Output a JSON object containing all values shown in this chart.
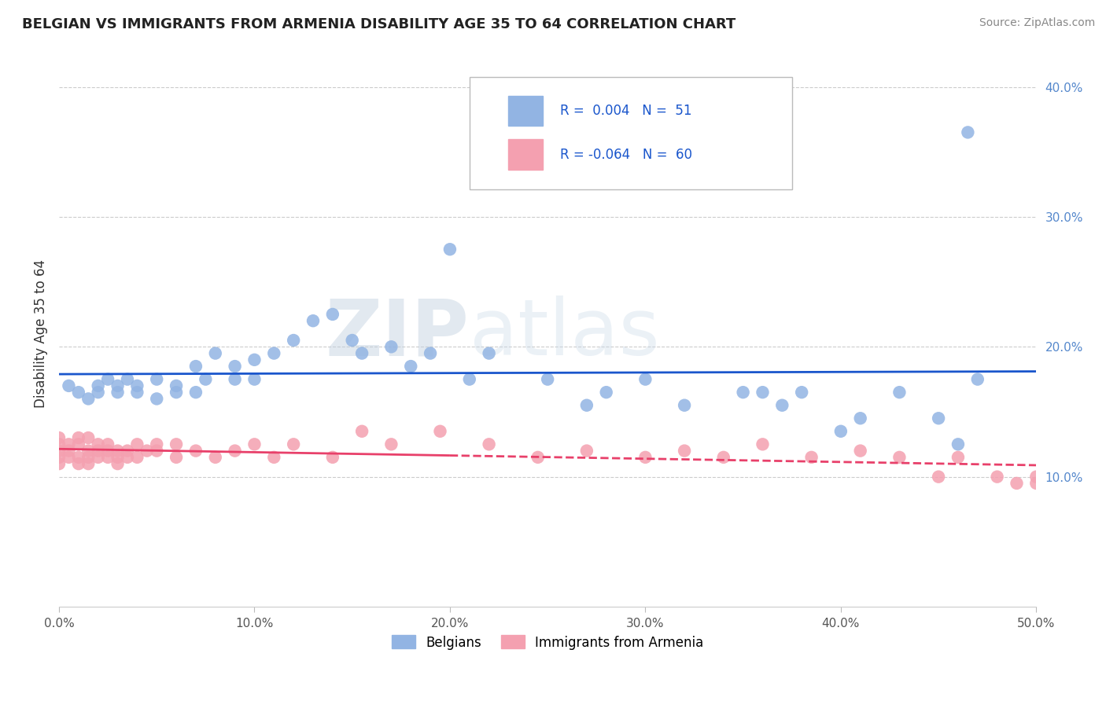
{
  "title": "BELGIAN VS IMMIGRANTS FROM ARMENIA DISABILITY AGE 35 TO 64 CORRELATION CHART",
  "source": "Source: ZipAtlas.com",
  "ylabel": "Disability Age 35 to 64",
  "xlim": [
    0.0,
    0.5
  ],
  "ylim": [
    0.0,
    0.42
  ],
  "xtick_vals": [
    0.0,
    0.1,
    0.2,
    0.3,
    0.4,
    0.5
  ],
  "xtick_labels": [
    "0.0%",
    "10.0%",
    "20.0%",
    "30.0%",
    "40.0%",
    "50.0%"
  ],
  "ytick_vals": [
    0.1,
    0.2,
    0.3,
    0.4
  ],
  "ytick_labels": [
    "10.0%",
    "20.0%",
    "30.0%",
    "40.0%"
  ],
  "legend_r_belgian": "0.004",
  "legend_n_belgian": "51",
  "legend_r_armenia": "-0.064",
  "legend_n_armenia": "60",
  "belgian_color": "#92b4e3",
  "armenia_color": "#f4a0b0",
  "trend_belgian_color": "#1a56cc",
  "trend_armenia_color": "#e8406a",
  "belgians_x": [
    0.005,
    0.01,
    0.015,
    0.02,
    0.02,
    0.025,
    0.03,
    0.03,
    0.035,
    0.04,
    0.04,
    0.05,
    0.05,
    0.06,
    0.06,
    0.07,
    0.07,
    0.075,
    0.08,
    0.09,
    0.09,
    0.1,
    0.1,
    0.11,
    0.12,
    0.13,
    0.14,
    0.15,
    0.155,
    0.17,
    0.18,
    0.19,
    0.2,
    0.21,
    0.22,
    0.25,
    0.27,
    0.28,
    0.3,
    0.32,
    0.35,
    0.36,
    0.37,
    0.38,
    0.4,
    0.41,
    0.43,
    0.45,
    0.46,
    0.465,
    0.47
  ],
  "belgians_y": [
    0.17,
    0.165,
    0.16,
    0.165,
    0.17,
    0.175,
    0.165,
    0.17,
    0.175,
    0.165,
    0.17,
    0.16,
    0.175,
    0.165,
    0.17,
    0.165,
    0.185,
    0.175,
    0.195,
    0.185,
    0.175,
    0.19,
    0.175,
    0.195,
    0.205,
    0.22,
    0.225,
    0.205,
    0.195,
    0.2,
    0.185,
    0.195,
    0.275,
    0.175,
    0.195,
    0.175,
    0.155,
    0.165,
    0.175,
    0.155,
    0.165,
    0.165,
    0.155,
    0.165,
    0.135,
    0.145,
    0.165,
    0.145,
    0.125,
    0.365,
    0.175
  ],
  "armenia_x": [
    0.0,
    0.0,
    0.0,
    0.0,
    0.0,
    0.005,
    0.005,
    0.005,
    0.01,
    0.01,
    0.01,
    0.01,
    0.015,
    0.015,
    0.015,
    0.015,
    0.02,
    0.02,
    0.02,
    0.025,
    0.025,
    0.025,
    0.03,
    0.03,
    0.03,
    0.035,
    0.035,
    0.04,
    0.04,
    0.045,
    0.05,
    0.05,
    0.06,
    0.06,
    0.07,
    0.08,
    0.09,
    0.1,
    0.11,
    0.12,
    0.14,
    0.155,
    0.17,
    0.195,
    0.22,
    0.245,
    0.27,
    0.3,
    0.32,
    0.34,
    0.36,
    0.385,
    0.41,
    0.43,
    0.45,
    0.46,
    0.48,
    0.49,
    0.5,
    0.5
  ],
  "armenia_y": [
    0.13,
    0.125,
    0.12,
    0.115,
    0.11,
    0.125,
    0.12,
    0.115,
    0.13,
    0.125,
    0.115,
    0.11,
    0.13,
    0.12,
    0.115,
    0.11,
    0.125,
    0.12,
    0.115,
    0.125,
    0.12,
    0.115,
    0.12,
    0.115,
    0.11,
    0.12,
    0.115,
    0.125,
    0.115,
    0.12,
    0.125,
    0.12,
    0.125,
    0.115,
    0.12,
    0.115,
    0.12,
    0.125,
    0.115,
    0.125,
    0.115,
    0.135,
    0.125,
    0.135,
    0.125,
    0.115,
    0.12,
    0.115,
    0.12,
    0.115,
    0.125,
    0.115,
    0.12,
    0.115,
    0.1,
    0.115,
    0.1,
    0.095,
    0.1,
    0.095
  ]
}
